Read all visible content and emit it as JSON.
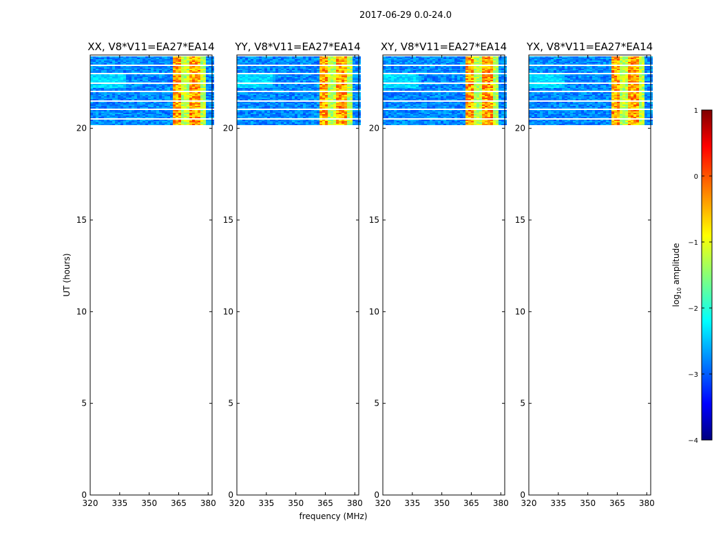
{
  "figure": {
    "suptitle": "2017-06-29 0.0-24.0"
  },
  "chart_data": [
    {
      "type": "heatmap",
      "title": "XX, V8*V11=EA27*EA14",
      "xlabel": "",
      "ylabel": "UT (hours)",
      "xlim": [
        320,
        382
      ],
      "ylim": [
        0,
        24
      ],
      "xticks": [
        "320",
        "335",
        "350",
        "365",
        "380"
      ],
      "yticks": [
        "0",
        "5",
        "10",
        "15",
        "20"
      ],
      "data_time_range": [
        20.2,
        24.0
      ],
      "bright_band_freq": [
        361,
        378
      ]
    },
    {
      "type": "heatmap",
      "title": "YY, V8*V11=EA27*EA14",
      "xlabel": "frequency (MHz)",
      "ylabel": "",
      "xlim": [
        320,
        382
      ],
      "ylim": [
        0,
        24
      ],
      "xticks": [
        "320",
        "335",
        "350",
        "365",
        "380"
      ],
      "yticks": [
        "0",
        "5",
        "10",
        "15",
        "20"
      ],
      "data_time_range": [
        20.2,
        24.0
      ],
      "bright_band_freq": [
        361,
        378
      ]
    },
    {
      "type": "heatmap",
      "title": "XY, V8*V11=EA27*EA14",
      "xlabel": "",
      "ylabel": "",
      "xlim": [
        320,
        382
      ],
      "ylim": [
        0,
        24
      ],
      "xticks": [
        "320",
        "335",
        "350",
        "365",
        "380"
      ],
      "yticks": [
        "0",
        "5",
        "10",
        "15",
        "20"
      ],
      "data_time_range": [
        20.2,
        24.0
      ],
      "bright_band_freq": [
        361,
        378
      ]
    },
    {
      "type": "heatmap",
      "title": "YX, V8*V11=EA27*EA14",
      "xlabel": "",
      "ylabel": "",
      "xlim": [
        320,
        382
      ],
      "ylim": [
        0,
        24
      ],
      "xticks": [
        "320",
        "335",
        "350",
        "365",
        "380"
      ],
      "yticks": [
        "0",
        "5",
        "10",
        "15",
        "20"
      ],
      "data_time_range": [
        20.2,
        24.0
      ],
      "bright_band_freq": [
        361,
        378
      ]
    }
  ],
  "colorbar": {
    "label": "log10 amplitude",
    "label_base": "log",
    "label_sub": "10",
    "label_rest": " amplitude",
    "range": [
      -4,
      1
    ],
    "ticks": [
      "1",
      "0",
      "−1",
      "−2",
      "−3",
      "−4"
    ],
    "colormap": "jet"
  }
}
